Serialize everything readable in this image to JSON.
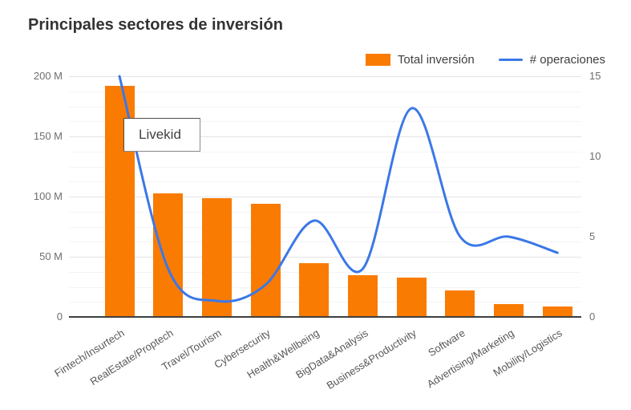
{
  "page": {
    "background": "#ffffff"
  },
  "chart_data": {
    "type": "combo",
    "title": "Principales sectores de inversión",
    "categories": [
      "Fintech/Insurtech",
      "RealEstate/Proptech",
      "Travel/Tourism",
      "Cybersecurity",
      "Health&Wellbeing",
      "BigData&Analysis",
      "Business&Productivity",
      "Software",
      "Advertising/Marketing",
      "Mobility/Logistics"
    ],
    "series": [
      {
        "name": "Total inversión",
        "type": "bar",
        "axis": "left",
        "color": "#F97B02",
        "values": [
          192,
          103,
          99,
          94,
          45,
          35,
          33,
          22,
          11,
          9
        ]
      },
      {
        "name": "# operaciones",
        "type": "line",
        "axis": "right",
        "color": "#3B78E7",
        "values": [
          15,
          3,
          1,
          2,
          6,
          3,
          13,
          5,
          5,
          4
        ]
      }
    ],
    "left_axis": {
      "unit": "M",
      "max": 200,
      "minor_step": 12.5,
      "ticks": [
        {
          "value": 0,
          "label": "0"
        },
        {
          "value": 50,
          "label": "50 M"
        },
        {
          "value": 100,
          "label": "100 M"
        },
        {
          "value": 150,
          "label": "150 M"
        },
        {
          "value": 200,
          "label": "200 M"
        }
      ]
    },
    "right_axis": {
      "max": 15,
      "ticks": [
        {
          "value": 0,
          "label": "0"
        },
        {
          "value": 5,
          "label": "5"
        },
        {
          "value": 10,
          "label": "10"
        },
        {
          "value": 15,
          "label": "15"
        }
      ]
    },
    "legend_position": "top-right",
    "grid": true
  },
  "tooltip": {
    "text": "Livekid"
  },
  "colors": {
    "bar": "#F97B02",
    "line": "#3B78E7",
    "title": "#333333",
    "axis_baseline": "#3f3f3f",
    "gridline_major": "#e4e4e4",
    "gridline_minor": "#f4f4f4",
    "tick_text": "#6e6e6e"
  }
}
